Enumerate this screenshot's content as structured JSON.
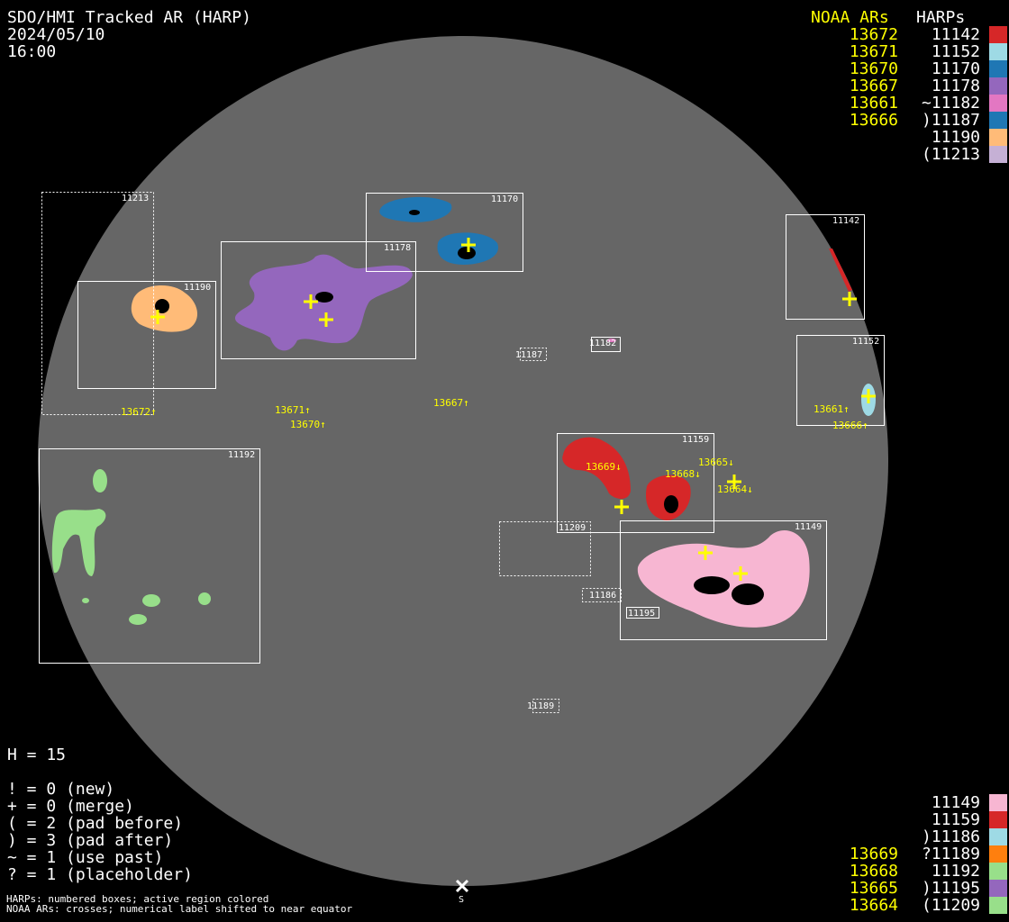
{
  "header": {
    "title": "SDO/HMI Tracked AR (HARP)",
    "date": "2024/05/10",
    "time": "16:00"
  },
  "legend_top": {
    "noaa_header": "NOAA ARs",
    "harp_header": "HARPs",
    "rows": [
      {
        "noaa": "13672",
        "harp": "11142",
        "color": "#d62728"
      },
      {
        "noaa": "13671",
        "harp": "11152",
        "color": "#9edae5"
      },
      {
        "noaa": "13670",
        "harp": "11170",
        "color": "#1f77b4"
      },
      {
        "noaa": "13667",
        "harp": "11178",
        "color": "#9467bd"
      },
      {
        "noaa": "13661",
        "harp": "~11182",
        "color": "#e377c2"
      },
      {
        "noaa": "13666",
        "harp": ")11187",
        "color": "#1f77b4"
      },
      {
        "noaa": "",
        "harp": "11190",
        "color": "#ffbb78"
      },
      {
        "noaa": "",
        "harp": "(11213",
        "color": "#c5b0d5"
      }
    ]
  },
  "legend_bottom": {
    "rows": [
      {
        "noaa": "",
        "harp": "11149",
        "color": "#f7b6d2"
      },
      {
        "noaa": "",
        "harp": "11159",
        "color": "#d62728"
      },
      {
        "noaa": "",
        "harp": ")11186",
        "color": "#9edae5"
      },
      {
        "noaa": "13669",
        "harp": "?11189",
        "color": "#ff7f0e"
      },
      {
        "noaa": "13668",
        "harp": "11192",
        "color": "#98df8a"
      },
      {
        "noaa": "13665",
        "harp": ")11195",
        "color": "#9467bd"
      },
      {
        "noaa": "13664",
        "harp": "(11209",
        "color": "#98df8a"
      }
    ]
  },
  "stats": {
    "h": "H = 15",
    "lines": [
      "! = 0 (new)",
      "+ = 0 (merge)",
      "( = 2 (pad before)",
      ") = 3 (pad after)",
      "~ = 1 (use past)",
      "? = 1 (placeholder)"
    ]
  },
  "footnotes": [
    "HARPs: numbered boxes; active region colored",
    "NOAA ARs: crosses; numerical label shifted to near equator"
  ],
  "south_marker": "S",
  "harp_boxes": {
    "b11213": "11213",
    "b11178": "11178",
    "b11170": "11170",
    "b11190": "11190",
    "b11142": "11142",
    "b11152": "11152",
    "b11192": "11192",
    "b11159": "11159",
    "b11209": "11209",
    "b11149": "11149",
    "b11187": "11187",
    "b11182": "11182",
    "b11186": "11186",
    "b11195": "11195",
    "b11189": "11189"
  },
  "noaa_labels": {
    "n13672": "13672↑",
    "n13671": "13671↑",
    "n13670": "13670↑",
    "n13667": "13667↑",
    "n13661": "13661↑",
    "n13666": "13666↑",
    "n13669": "13669↓",
    "n13665": "13665↓",
    "n13668": "13668↓",
    "n13664": "13664↓"
  },
  "colors": {
    "disk": "#666666",
    "noaa": "#ffff00",
    "box": "#ffffff"
  }
}
